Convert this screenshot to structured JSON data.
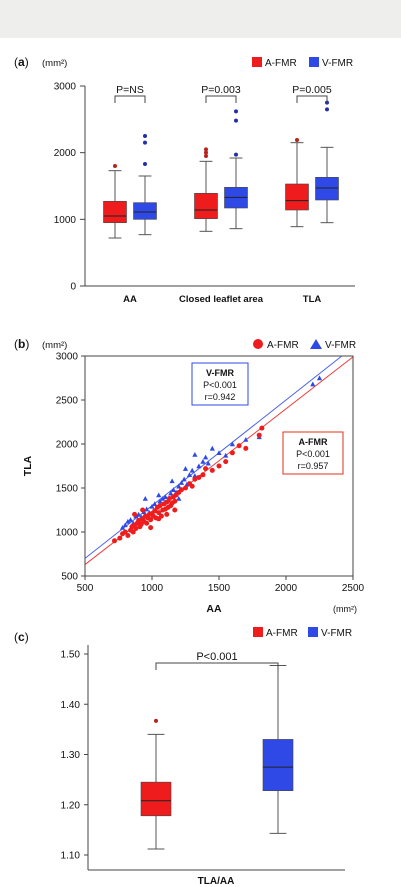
{
  "colors": {
    "afmr": "#ee1c1c",
    "vfmr": "#2f49e6",
    "afmr_outlier": "#b8231c",
    "vfmr_outlier": "#2230a8"
  },
  "legend": {
    "afmr": "A-FMR",
    "vfmr": "V-FMR"
  },
  "panels": {
    "a": {
      "label": "a",
      "unit": "(mm²)"
    },
    "b": {
      "label": "b",
      "unit": "(mm²)",
      "x_unit": "(mm²)"
    },
    "c": {
      "label": "c"
    }
  },
  "chart_data": [
    {
      "type": "box",
      "id": "a",
      "categories": [
        "AA",
        "Closed leaflet area",
        "TLA"
      ],
      "ylim": [
        0,
        3000
      ],
      "yticks": [
        0,
        1000,
        2000,
        3000
      ],
      "pvalues": [
        "P=NS",
        "P=0.003",
        "P=0.005"
      ],
      "series": [
        {
          "name": "A-FMR",
          "boxes": [
            {
              "min": 720,
              "q1": 950,
              "median": 1050,
              "q3": 1270,
              "max": 1730,
              "outliers": [
                1800
              ]
            },
            {
              "min": 820,
              "q1": 1010,
              "median": 1140,
              "q3": 1390,
              "max": 1870,
              "outliers": [
                1950,
                2000,
                2050
              ]
            },
            {
              "min": 890,
              "q1": 1140,
              "median": 1280,
              "q3": 1530,
              "max": 2150,
              "outliers": [
                2190
              ]
            }
          ]
        },
        {
          "name": "V-FMR",
          "boxes": [
            {
              "min": 770,
              "q1": 1000,
              "median": 1110,
              "q3": 1250,
              "max": 1650,
              "outliers": [
                1830,
                2150,
                2250
              ]
            },
            {
              "min": 860,
              "q1": 1170,
              "median": 1330,
              "q3": 1480,
              "max": 1920,
              "outliers": [
                1970,
                2480,
                2620
              ]
            },
            {
              "min": 950,
              "q1": 1290,
              "median": 1470,
              "q3": 1630,
              "max": 2080,
              "outliers": [
                2650,
                2750
              ]
            }
          ]
        }
      ]
    },
    {
      "type": "scatter",
      "id": "b",
      "xlabel": "AA",
      "ylabel": "TLA",
      "xlim": [
        500,
        2500
      ],
      "ylim": [
        500,
        3000
      ],
      "xticks": [
        500,
        1000,
        1500,
        2000,
        2500
      ],
      "yticks": [
        500,
        1000,
        1500,
        2000,
        2500,
        3000
      ],
      "series": [
        {
          "name": "A-FMR",
          "marker": "circle",
          "fit": {
            "slope": 1.18,
            "intercept": 40
          },
          "stats": {
            "title": "A-FMR",
            "p": "P<0.001",
            "r": "r=0.957"
          },
          "points": [
            [
              720,
              900
            ],
            [
              760,
              930
            ],
            [
              780,
              980
            ],
            [
              800,
              1000
            ],
            [
              820,
              960
            ],
            [
              840,
              1020
            ],
            [
              850,
              1060
            ],
            [
              860,
              1000
            ],
            [
              870,
              1080
            ],
            [
              880,
              1040
            ],
            [
              890,
              1100
            ],
            [
              900,
              1130
            ],
            [
              910,
              1060
            ],
            [
              920,
              1090
            ],
            [
              930,
              1150
            ],
            [
              940,
              1120
            ],
            [
              950,
              1180
            ],
            [
              960,
              1100
            ],
            [
              970,
              1160
            ],
            [
              980,
              1200
            ],
            [
              990,
              1140
            ],
            [
              1000,
              1210
            ],
            [
              1010,
              1180
            ],
            [
              1020,
              1240
            ],
            [
              1030,
              1160
            ],
            [
              1040,
              1280
            ],
            [
              1050,
              1220
            ],
            [
              1060,
              1300
            ],
            [
              1070,
              1180
            ],
            [
              1080,
              1250
            ],
            [
              1090,
              1320
            ],
            [
              1100,
              1260
            ],
            [
              1110,
              1340
            ],
            [
              1120,
              1280
            ],
            [
              1130,
              1380
            ],
            [
              1140,
              1300
            ],
            [
              1150,
              1330
            ],
            [
              1160,
              1400
            ],
            [
              1170,
              1350
            ],
            [
              1180,
              1420
            ],
            [
              1200,
              1450
            ],
            [
              1220,
              1480
            ],
            [
              1250,
              1500
            ],
            [
              1280,
              1550
            ],
            [
              1300,
              1520
            ],
            [
              1320,
              1600
            ],
            [
              1350,
              1620
            ],
            [
              1380,
              1650
            ],
            [
              1400,
              1720
            ],
            [
              1450,
              1700
            ],
            [
              1500,
              1750
            ],
            [
              1550,
              1800
            ],
            [
              1600,
              1900
            ],
            [
              1650,
              1980
            ],
            [
              1700,
              1950
            ],
            [
              1800,
              2100
            ],
            [
              1820,
              2180
            ],
            [
              870,
              1200
            ],
            [
              930,
              1250
            ],
            [
              990,
              1050
            ],
            [
              1050,
              1150
            ],
            [
              1110,
              1200
            ],
            [
              1170,
              1250
            ]
          ]
        },
        {
          "name": "V-FMR",
          "marker": "triangle",
          "fit": {
            "slope": 1.2,
            "intercept": 100
          },
          "stats": {
            "title": "V-FMR",
            "p": "P<0.001",
            "r": "r=0.942"
          },
          "points": [
            [
              780,
              1050
            ],
            [
              800,
              1080
            ],
            [
              820,
              1120
            ],
            [
              840,
              1140
            ],
            [
              860,
              1100
            ],
            [
              880,
              1180
            ],
            [
              900,
              1200
            ],
            [
              920,
              1170
            ],
            [
              940,
              1230
            ],
            [
              960,
              1260
            ],
            [
              980,
              1220
            ],
            [
              1000,
              1290
            ],
            [
              1020,
              1320
            ],
            [
              1040,
              1280
            ],
            [
              1060,
              1350
            ],
            [
              1080,
              1380
            ],
            [
              1100,
              1400
            ],
            [
              1120,
              1360
            ],
            [
              1140,
              1440
            ],
            [
              1160,
              1480
            ],
            [
              1180,
              1450
            ],
            [
              1200,
              1520
            ],
            [
              1220,
              1560
            ],
            [
              1240,
              1600
            ],
            [
              1260,
              1540
            ],
            [
              1280,
              1650
            ],
            [
              1300,
              1700
            ],
            [
              1320,
              1640
            ],
            [
              1350,
              1750
            ],
            [
              1380,
              1800
            ],
            [
              1400,
              1850
            ],
            [
              1420,
              1780
            ],
            [
              1450,
              1950
            ],
            [
              1500,
              1900
            ],
            [
              1550,
              1870
            ],
            [
              1600,
              2000
            ],
            [
              1700,
              2050
            ],
            [
              1800,
              2080
            ],
            [
              2200,
              2680
            ],
            [
              2250,
              2750
            ],
            [
              950,
              1380
            ],
            [
              1050,
              1420
            ],
            [
              1150,
              1580
            ],
            [
              1250,
              1720
            ],
            [
              1320,
              1880
            ],
            [
              1200,
              1380
            ]
          ]
        }
      ]
    },
    {
      "type": "box",
      "id": "c",
      "categories": [
        "TLA/AA"
      ],
      "ylim": [
        1.1,
        1.5
      ],
      "yticks": [
        "1.10",
        "1.20",
        "1.30",
        "1.40",
        "1.50"
      ],
      "pvalue": "P<0.001",
      "series": [
        {
          "name": "A-FMR",
          "box": {
            "min": 1.112,
            "q1": 1.178,
            "median": 1.208,
            "q3": 1.245,
            "max": 1.34,
            "outliers": [
              1.367
            ]
          }
        },
        {
          "name": "V-FMR",
          "box": {
            "min": 1.143,
            "q1": 1.228,
            "median": 1.275,
            "q3": 1.33,
            "max": 1.477,
            "outliers": []
          }
        }
      ]
    }
  ]
}
